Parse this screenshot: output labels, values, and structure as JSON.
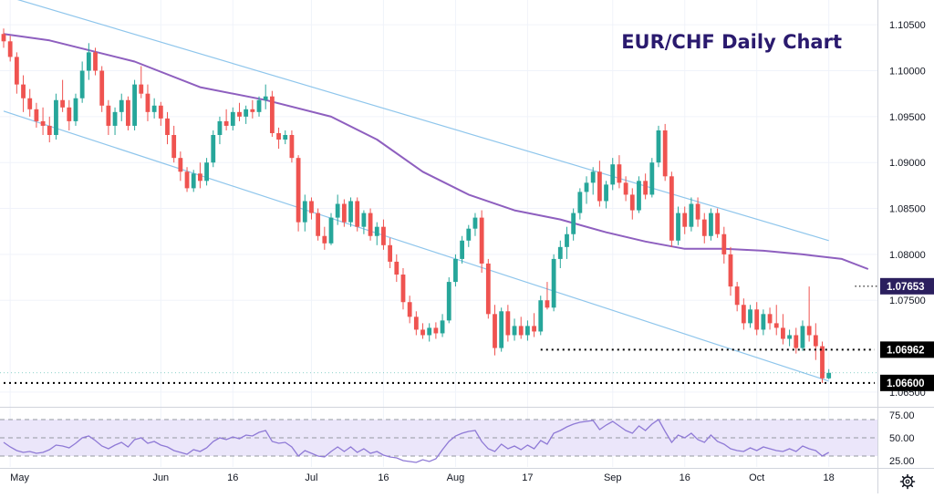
{
  "chart_data": {
    "type": "candlestick",
    "title": "EUR/CHF Daily Chart",
    "price_axis": {
      "ylim": [
        1.0635,
        1.1077
      ],
      "ticks": [
        "1.10500",
        "1.10000",
        "1.09500",
        "1.09000",
        "1.08500",
        "1.08000",
        "1.07500",
        "1.06500"
      ]
    },
    "time_axis": {
      "labels": [
        "May",
        "Jun",
        "16",
        "Jul",
        "16",
        "Aug",
        "17",
        "Sep",
        "16",
        "Oct",
        "18"
      ],
      "label_bar_index": [
        1,
        24,
        35,
        47,
        58,
        69,
        80,
        93,
        104,
        115,
        126
      ]
    },
    "badges": [
      {
        "label": "1.07653",
        "value": 1.07653,
        "style": "purple"
      },
      {
        "label": "1.06962",
        "value": 1.06962,
        "style": "black"
      },
      {
        "label": "1.06600",
        "value": 1.066,
        "style": "black"
      }
    ],
    "colors": {
      "up": "#26a69a",
      "down": "#ef5350",
      "ma": "#8e5fbf",
      "channel": "#8fc6ec",
      "rsi": "#8f7ad6",
      "rsi_band": "#ebe6fa"
    },
    "moving_average": [
      [
        0,
        1.104
      ],
      [
        7,
        1.1033
      ],
      [
        20,
        1.101
      ],
      [
        30,
        1.0982
      ],
      [
        40,
        1.0968
      ],
      [
        50,
        1.095
      ],
      [
        57,
        1.0925
      ],
      [
        64,
        1.089
      ],
      [
        71,
        1.0865
      ],
      [
        78,
        1.0848
      ],
      [
        85,
        1.0838
      ],
      [
        92,
        1.0824
      ],
      [
        98,
        1.0814
      ],
      [
        104,
        1.0806
      ],
      [
        110,
        1.0806
      ],
      [
        116,
        1.0804
      ],
      [
        122,
        1.08
      ],
      [
        128,
        1.0795
      ],
      [
        132,
        1.0784
      ]
    ],
    "channel_lines": [
      {
        "from": [
          0,
          1.1082
        ],
        "to": [
          126,
          1.0815
        ]
      },
      {
        "from": [
          0,
          1.0956
        ],
        "to": [
          126,
          1.0662
        ]
      }
    ],
    "support_lines": [
      {
        "value": 1.06962,
        "from_bar": 82,
        "to_bar": 133
      },
      {
        "value": 1.066,
        "from_bar": 0,
        "to_bar": 133
      },
      {
        "value": 1.07653,
        "from_bar": 130,
        "to_bar": 137
      }
    ],
    "last_price": 1.0671,
    "candles": [
      [
        1.104,
        1.1046,
        1.1025,
        1.1032
      ],
      [
        1.1032,
        1.1038,
        1.101,
        1.1015
      ],
      [
        1.1015,
        1.102,
        1.0975,
        1.0985
      ],
      [
        1.0985,
        1.0995,
        1.0955,
        1.097
      ],
      [
        1.097,
        1.098,
        1.095,
        1.0958
      ],
      [
        1.0958,
        1.0965,
        1.0938,
        1.0945
      ],
      [
        1.0945,
        1.096,
        1.093,
        1.094
      ],
      [
        1.094,
        1.095,
        1.0922,
        1.093
      ],
      [
        1.093,
        1.0975,
        1.0925,
        1.0968
      ],
      [
        1.0968,
        1.099,
        1.0955,
        1.096
      ],
      [
        1.096,
        1.0968,
        1.0935,
        1.0945
      ],
      [
        1.0945,
        1.0975,
        1.094,
        1.097
      ],
      [
        1.097,
        1.101,
        1.0965,
        1.1
      ],
      [
        1.1,
        1.103,
        1.099,
        1.102
      ],
      [
        1.102,
        1.1025,
        1.0995,
        1.1
      ],
      [
        1.1,
        1.1005,
        1.0955,
        1.0962
      ],
      [
        1.0962,
        1.0968,
        1.093,
        1.094
      ],
      [
        1.094,
        1.096,
        1.093,
        1.0955
      ],
      [
        1.0955,
        1.0975,
        1.0945,
        1.0968
      ],
      [
        1.0968,
        1.0972,
        1.0935,
        1.094
      ],
      [
        1.094,
        1.099,
        1.0935,
        1.0985
      ],
      [
        1.0985,
        1.1005,
        1.097,
        1.0975
      ],
      [
        1.0975,
        1.0985,
        1.0945,
        1.0955
      ],
      [
        1.0955,
        1.097,
        1.0948,
        1.0962
      ],
      [
        1.0962,
        1.0966,
        1.094,
        1.0948
      ],
      [
        1.0948,
        1.0955,
        1.092,
        1.093
      ],
      [
        1.093,
        1.094,
        1.09,
        1.0905
      ],
      [
        1.0905,
        1.0912,
        1.088,
        1.089
      ],
      [
        1.089,
        1.0895,
        1.0868,
        1.0872
      ],
      [
        1.0872,
        1.0892,
        1.0868,
        1.0888
      ],
      [
        1.0888,
        1.09,
        1.0872,
        1.088
      ],
      [
        1.088,
        1.0905,
        1.0875,
        1.09
      ],
      [
        1.09,
        1.0935,
        1.0895,
        1.093
      ],
      [
        1.093,
        1.095,
        1.092,
        1.0945
      ],
      [
        1.0945,
        1.0958,
        1.0935,
        1.094
      ],
      [
        1.094,
        1.096,
        1.0935,
        1.0955
      ],
      [
        1.0955,
        1.0965,
        1.0945,
        1.095
      ],
      [
        1.095,
        1.0962,
        1.0942,
        1.0958
      ],
      [
        1.0958,
        1.0968,
        1.0948,
        1.0955
      ],
      [
        1.0955,
        1.0972,
        1.095,
        1.0968
      ],
      [
        1.0968,
        1.0985,
        1.0958,
        1.0972
      ],
      [
        1.0972,
        1.0978,
        1.0928,
        1.0932
      ],
      [
        1.0932,
        1.0938,
        1.0915,
        1.0925
      ],
      [
        1.0925,
        1.0935,
        1.092,
        1.093
      ],
      [
        1.093,
        1.0935,
        1.09,
        1.0905
      ],
      [
        1.0905,
        1.0908,
        1.0825,
        1.0835
      ],
      [
        1.0835,
        1.0865,
        1.0825,
        1.0858
      ],
      [
        1.0858,
        1.0862,
        1.0838,
        1.0845
      ],
      [
        1.0845,
        1.085,
        1.0815,
        1.082
      ],
      [
        1.082,
        1.083,
        1.0805,
        1.0812
      ],
      [
        1.0812,
        1.0845,
        1.081,
        1.084
      ],
      [
        1.084,
        1.0865,
        1.0832,
        1.0855
      ],
      [
        1.0855,
        1.086,
        1.083,
        1.0835
      ],
      [
        1.0835,
        1.0862,
        1.083,
        1.0858
      ],
      [
        1.0858,
        1.0862,
        1.0825,
        1.083
      ],
      [
        1.083,
        1.0848,
        1.0822,
        1.0845
      ],
      [
        1.0845,
        1.085,
        1.0815,
        1.082
      ],
      [
        1.082,
        1.0835,
        1.081,
        1.083
      ],
      [
        1.083,
        1.0838,
        1.0805,
        1.081
      ],
      [
        1.081,
        1.0818,
        1.0785,
        1.0792
      ],
      [
        1.0792,
        1.08,
        1.077,
        1.0778
      ],
      [
        1.0778,
        1.0785,
        1.074,
        1.0748
      ],
      [
        1.0748,
        1.0755,
        1.0725,
        1.0732
      ],
      [
        1.0732,
        1.0738,
        1.0712,
        1.0718
      ],
      [
        1.0718,
        1.0725,
        1.0708,
        1.0712
      ],
      [
        1.0712,
        1.0725,
        1.0705,
        1.072
      ],
      [
        1.072,
        1.0726,
        1.0708,
        1.0714
      ],
      [
        1.0714,
        1.0735,
        1.071,
        1.0728
      ],
      [
        1.0728,
        1.0775,
        1.0725,
        1.077
      ],
      [
        1.077,
        1.08,
        1.0765,
        1.0795
      ],
      [
        1.0795,
        1.082,
        1.079,
        1.0815
      ],
      [
        1.0815,
        1.0832,
        1.0808,
        1.0828
      ],
      [
        1.0828,
        1.0845,
        1.082,
        1.084
      ],
      [
        1.084,
        1.0848,
        1.078,
        1.079
      ],
      [
        1.079,
        1.0795,
        1.073,
        1.0735
      ],
      [
        1.0735,
        1.0745,
        1.069,
        1.0698
      ],
      [
        1.0698,
        1.0742,
        1.0694,
        1.0738
      ],
      [
        1.0738,
        1.0745,
        1.0705,
        1.0712
      ],
      [
        1.0712,
        1.073,
        1.0706,
        1.0722
      ],
      [
        1.0722,
        1.0732,
        1.0708,
        1.0712
      ],
      [
        1.0712,
        1.0728,
        1.0706,
        1.0722
      ],
      [
        1.0722,
        1.0736,
        1.071,
        1.0716
      ],
      [
        1.0716,
        1.0755,
        1.0712,
        1.075
      ],
      [
        1.075,
        1.077,
        1.074,
        1.0742
      ],
      [
        1.0742,
        1.08,
        1.0738,
        1.0795
      ],
      [
        1.0795,
        1.0815,
        1.0785,
        1.0808
      ],
      [
        1.0808,
        1.083,
        1.0795,
        1.0822
      ],
      [
        1.0822,
        1.085,
        1.0815,
        1.0845
      ],
      [
        1.0845,
        1.0872,
        1.0838,
        1.0868
      ],
      [
        1.0868,
        1.0885,
        1.0855,
        1.0878
      ],
      [
        1.0878,
        1.0895,
        1.0865,
        1.089
      ],
      [
        1.089,
        1.0902,
        1.0852,
        1.0858
      ],
      [
        1.0858,
        1.088,
        1.085,
        1.0876
      ],
      [
        1.0876,
        1.0905,
        1.087,
        1.0898
      ],
      [
        1.0898,
        1.0908,
        1.0872,
        1.0878
      ],
      [
        1.0878,
        1.0885,
        1.0858,
        1.0865
      ],
      [
        1.0865,
        1.0872,
        1.0838,
        1.0848
      ],
      [
        1.0848,
        1.0885,
        1.0845,
        1.088
      ],
      [
        1.088,
        1.0888,
        1.086,
        1.0865
      ],
      [
        1.0865,
        1.0905,
        1.0862,
        1.09
      ],
      [
        1.09,
        1.094,
        1.0895,
        1.0935
      ],
      [
        1.0935,
        1.0942,
        1.088,
        1.0885
      ],
      [
        1.0885,
        1.089,
        1.0808,
        1.0815
      ],
      [
        1.0815,
        1.0852,
        1.081,
        1.0845
      ],
      [
        1.0845,
        1.0852,
        1.0822,
        1.083
      ],
      [
        1.083,
        1.0862,
        1.0825,
        1.0855
      ],
      [
        1.0855,
        1.0862,
        1.083,
        1.0838
      ],
      [
        1.0838,
        1.0845,
        1.0812,
        1.082
      ],
      [
        1.082,
        1.085,
        1.0815,
        1.0845
      ],
      [
        1.0845,
        1.085,
        1.0818,
        1.0822
      ],
      [
        1.0822,
        1.083,
        1.079,
        1.08
      ],
      [
        1.08,
        1.0808,
        1.0755,
        1.0765
      ],
      [
        1.0765,
        1.077,
        1.0738,
        1.0745
      ],
      [
        1.0745,
        1.0752,
        1.0718,
        1.0725
      ],
      [
        1.0725,
        1.0745,
        1.072,
        1.074
      ],
      [
        1.074,
        1.0748,
        1.0712,
        1.0718
      ],
      [
        1.0718,
        1.074,
        1.0712,
        1.0735
      ],
      [
        1.0735,
        1.0742,
        1.0718,
        1.0725
      ],
      [
        1.0725,
        1.0745,
        1.0712,
        1.072
      ],
      [
        1.072,
        1.0735,
        1.0702,
        1.0708
      ],
      [
        1.0708,
        1.0718,
        1.07,
        1.0712
      ],
      [
        1.0712,
        1.072,
        1.0692,
        1.0698
      ],
      [
        1.0698,
        1.0728,
        1.0695,
        1.0722
      ],
      [
        1.0722,
        1.0765,
        1.0705,
        1.0712
      ],
      [
        1.0712,
        1.0725,
        1.0685,
        1.07
      ],
      [
        1.07,
        1.0705,
        1.066,
        1.0665
      ],
      [
        1.0665,
        1.0675,
        1.0664,
        1.0671
      ]
    ],
    "rsi": {
      "ticks": [
        "75.00",
        "50.00",
        "25.00"
      ],
      "ylim": [
        18,
        82
      ],
      "band": [
        30,
        70
      ],
      "values": [
        45,
        40,
        36,
        34,
        35,
        33,
        34,
        37,
        42,
        41,
        39,
        44,
        50,
        52,
        47,
        41,
        38,
        42,
        45,
        40,
        48,
        50,
        44,
        46,
        42,
        40,
        36,
        34,
        32,
        37,
        35,
        39,
        46,
        50,
        48,
        51,
        49,
        53,
        52,
        56,
        58,
        46,
        44,
        45,
        40,
        30,
        36,
        33,
        30,
        29,
        35,
        40,
        35,
        40,
        34,
        38,
        33,
        35,
        31,
        29,
        28,
        25,
        24,
        23,
        26,
        24,
        27,
        37,
        46,
        52,
        55,
        57,
        58,
        46,
        38,
        35,
        43,
        38,
        41,
        37,
        42,
        38,
        47,
        43,
        55,
        58,
        62,
        65,
        67,
        68,
        69,
        59,
        64,
        68,
        63,
        58,
        55,
        63,
        58,
        65,
        70,
        57,
        45,
        53,
        50,
        55,
        48,
        45,
        53,
        46,
        43,
        38,
        36,
        35,
        39,
        36,
        40,
        38,
        36,
        35,
        38,
        35,
        41,
        38,
        36,
        30,
        34
      ]
    }
  }
}
